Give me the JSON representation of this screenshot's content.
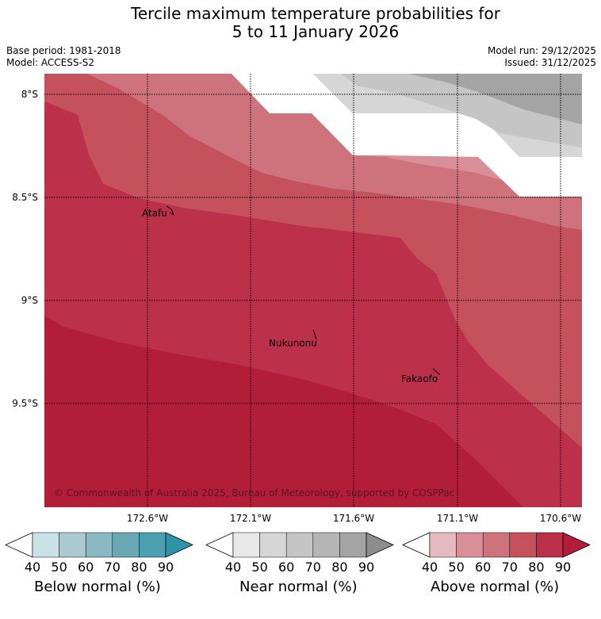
{
  "title_line1": "Tercile maximum temperature probabilities for",
  "title_line2": "5 to 11 January 2026",
  "base_period": "Base period: 1981-2018",
  "model": "Model: ACCESS-S2",
  "model_run": "Model run: 29/12/2025",
  "issued": "Issued: 31/12/2025",
  "lat_labels": [
    "8°S",
    "8.5°S",
    "9°S",
    "9.5°S"
  ],
  "lon_labels": [
    "172.6°W",
    "172.1°W",
    "171.6°W",
    "171.1°W",
    "170.6°W"
  ],
  "places": {
    "atafu": "Atafu",
    "nukunonu": "Nukunonu",
    "fakaofo": "Fakaofo"
  },
  "copyright": "© Commonwealth of Australia 2025, Bureau of Meteorology, supported by COSPPac",
  "colorbars": {
    "below": {
      "label": "Below normal (%)",
      "ticks": [
        "40",
        "50",
        "60",
        "70",
        "80",
        "90"
      ],
      "colors": [
        "#ffffff",
        "#c9e2e7",
        "#a8cad0",
        "#89b8c2",
        "#6ba8b5",
        "#4a9fb0",
        "#2e95a8"
      ]
    },
    "near": {
      "label": "Near normal (%)",
      "ticks": [
        "40",
        "50",
        "60",
        "70",
        "80",
        "90"
      ],
      "colors": [
        "#ffffff",
        "#e8e8e8",
        "#d6d6d6",
        "#c5c5c5",
        "#b5b5b5",
        "#a4a4a4",
        "#8d8d8d"
      ]
    },
    "above": {
      "label": "Above normal (%)",
      "ticks": [
        "40",
        "50",
        "60",
        "70",
        "80",
        "90"
      ],
      "colors": [
        "#ffffff",
        "#e4b9bf",
        "#d98f98",
        "#ce737c",
        "#c4515b",
        "#bd3049",
        "#b21d38"
      ]
    }
  }
}
